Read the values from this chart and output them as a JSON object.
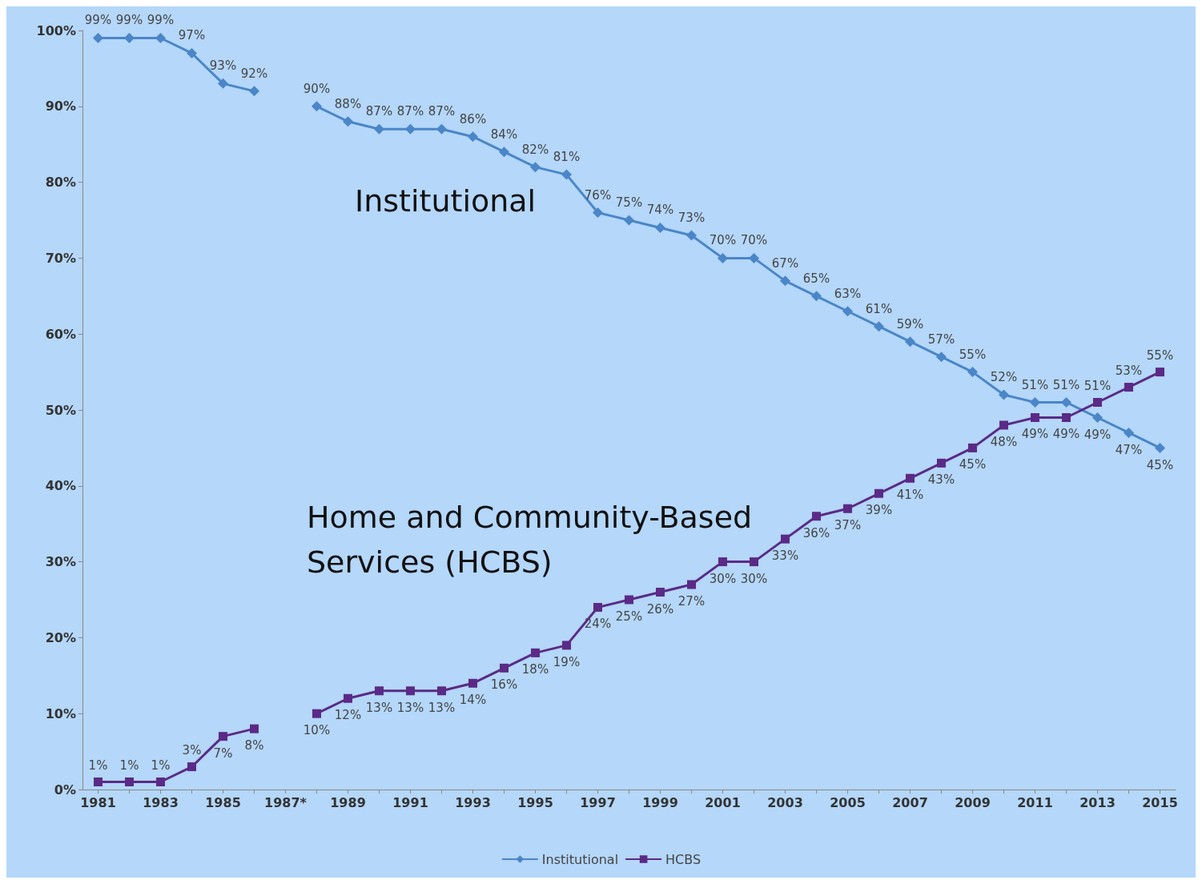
{
  "chart_data": {
    "type": "line",
    "categories": [
      "1981",
      null,
      "1983",
      null,
      "1985",
      null,
      "1987*",
      null,
      "1989",
      null,
      "1991",
      null,
      "1993",
      null,
      "1995",
      null,
      "1997",
      null,
      "1999",
      null,
      "2001",
      null,
      "2003",
      null,
      "2005",
      null,
      "2007",
      null,
      "2009",
      null,
      "2011",
      null,
      "2013",
      null,
      "2015"
    ],
    "series": [
      {
        "name": "Institutional",
        "color": "#4a86c8",
        "marker": "diamond",
        "values": [
          99,
          99,
          99,
          97,
          93,
          92,
          null,
          90,
          88,
          87,
          87,
          87,
          86,
          84,
          82,
          81,
          76,
          75,
          74,
          73,
          70,
          70,
          67,
          65,
          63,
          61,
          59,
          57,
          55,
          52,
          51,
          51,
          49,
          47,
          45
        ],
        "value_labels": [
          "99%",
          "99%",
          "99%",
          "97%",
          "93%",
          "92%",
          null,
          "90%",
          "88%",
          "87%",
          "87%",
          "87%",
          "86%",
          "84%",
          "82%",
          "81%",
          "76%",
          "75%",
          "74%",
          "73%",
          "70%",
          "70%",
          "67%",
          "65%",
          "63%",
          "61%",
          "59%",
          "57%",
          "55%",
          "52%",
          "51%",
          "51%",
          "49%",
          "47%",
          "45%"
        ]
      },
      {
        "name": "HCBS",
        "color": "#5b2a86",
        "marker": "square",
        "values": [
          1,
          1,
          1,
          3,
          7,
          8,
          null,
          10,
          12,
          13,
          13,
          13,
          14,
          16,
          18,
          19,
          24,
          25,
          26,
          27,
          30,
          30,
          33,
          36,
          37,
          39,
          41,
          43,
          45,
          48,
          49,
          49,
          51,
          53,
          55
        ],
        "value_labels": [
          "1%",
          "1%",
          "1%",
          "3%",
          "7%",
          "8%",
          null,
          "10%",
          "12%",
          "13%",
          "13%",
          "13%",
          "14%",
          "16%",
          "18%",
          "19%",
          "24%",
          "25%",
          "26%",
          "27%",
          "30%",
          "30%",
          "33%",
          "36%",
          "37%",
          "39%",
          "41%",
          "43%",
          "45%",
          "48%",
          "49%",
          "49%",
          "51%",
          "53%",
          "55%"
        ]
      }
    ],
    "ylim": [
      0,
      100
    ],
    "yticks": [
      {
        "value": 0,
        "label": "0%"
      },
      {
        "value": 10,
        "label": "10%"
      },
      {
        "value": 20,
        "label": "20%"
      },
      {
        "value": 30,
        "label": "30%"
      },
      {
        "value": 40,
        "label": "40%"
      },
      {
        "value": 50,
        "label": "50%"
      },
      {
        "value": 60,
        "label": "60%"
      },
      {
        "value": 70,
        "label": "70%"
      },
      {
        "value": 80,
        "label": "80%"
      },
      {
        "value": 90,
        "label": "90%"
      },
      {
        "value": 100,
        "label": "100%"
      }
    ],
    "annotations": [
      "Institutional",
      "Home and Community-Based Services (HCBS)"
    ],
    "grid": false,
    "legend": "bottom"
  }
}
